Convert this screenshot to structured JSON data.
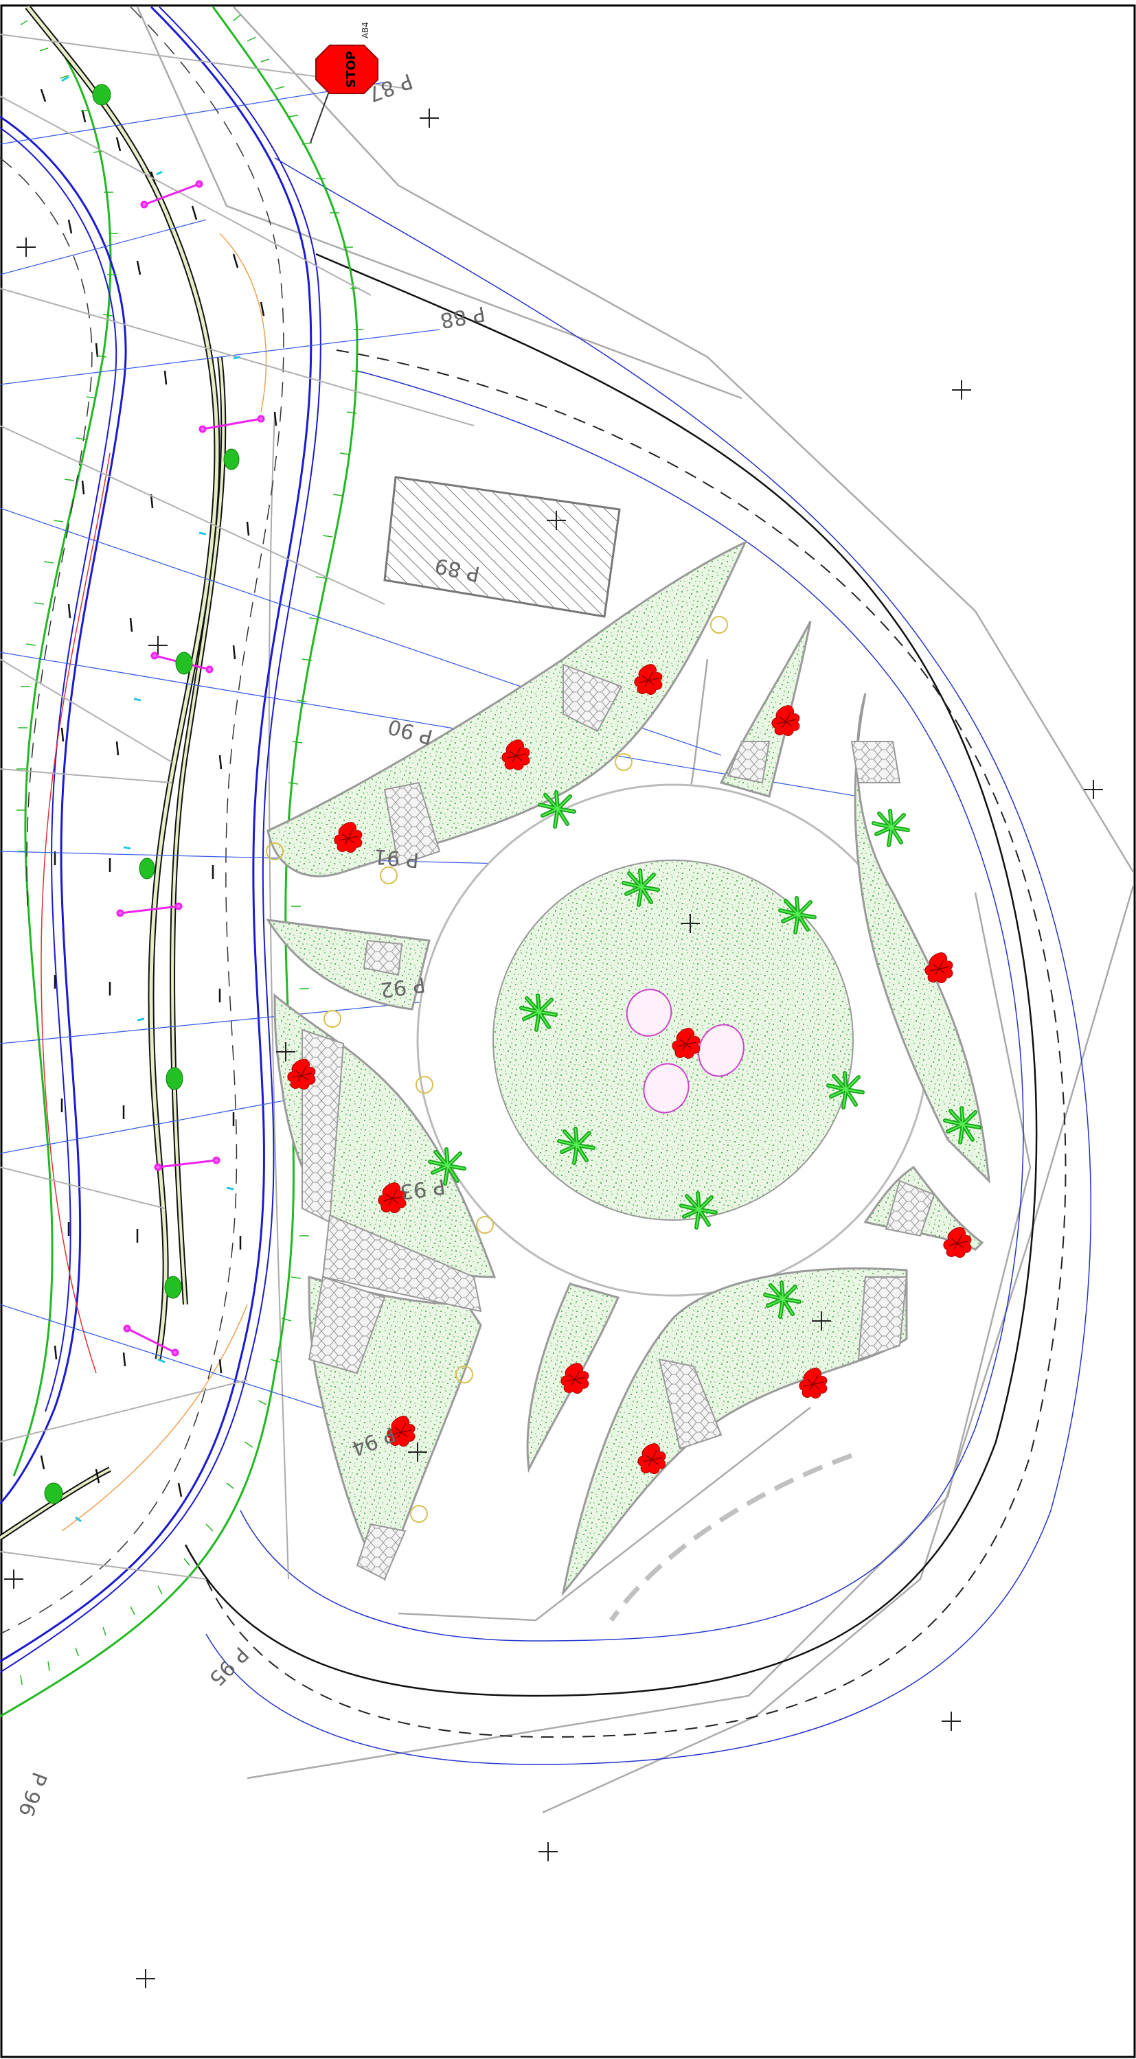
{
  "sign": {
    "text": "STOP",
    "code": "AB4"
  },
  "profiles": [
    {
      "id": "p87",
      "label": "P 87"
    },
    {
      "id": "p88",
      "label": "P 88"
    },
    {
      "id": "p89",
      "label": "P 89"
    },
    {
      "id": "p90",
      "label": "P 90"
    },
    {
      "id": "p91",
      "label": "P 91"
    },
    {
      "id": "p92",
      "label": "P 92"
    },
    {
      "id": "p93",
      "label": "P 93"
    },
    {
      "id": "p94",
      "label": "P 94"
    },
    {
      "id": "p95",
      "label": "P 95"
    },
    {
      "id": "p96",
      "label": "P 96"
    }
  ],
  "colors": {
    "lawn": "#e8f4e2",
    "lawn_dots": "#3aa23a",
    "tree": "#ff0000",
    "palm": "#22cc22",
    "road_edge_blue": "#1a1ad0",
    "edge_green": "#22b822",
    "gray_line": "#aaaaaa",
    "pavers": "#f2f2f2",
    "ellipse": "#cc44cc",
    "annotation_red": "#e03030",
    "annotation_cyan": "#22c8e8",
    "stop_sign": "#ff0000"
  }
}
